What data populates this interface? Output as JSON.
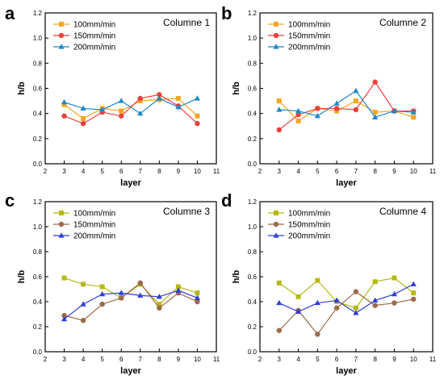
{
  "chart_data": [
    {
      "type": "line",
      "panel_letter": "a",
      "title": "Columne 1",
      "xlabel": "layer",
      "ylabel": "h/b",
      "xlim": [
        2,
        11
      ],
      "ylim": [
        0.0,
        1.2
      ],
      "xticks": [
        2,
        3,
        4,
        5,
        6,
        7,
        8,
        9,
        10,
        11
      ],
      "yticks": [
        0.0,
        0.2,
        0.4,
        0.6,
        0.8,
        1.0,
        1.2
      ],
      "grid": false,
      "legend": "top-left",
      "x": [
        3,
        4,
        5,
        6,
        7,
        8,
        9,
        10
      ],
      "series": [
        {
          "name": "100mm/min",
          "marker": "square",
          "color": "#F5A623",
          "values": [
            0.47,
            0.36,
            0.44,
            0.42,
            0.5,
            0.51,
            0.52,
            0.38
          ]
        },
        {
          "name": "150mm/min",
          "marker": "circle",
          "color": "#E8413C",
          "values": [
            0.38,
            0.32,
            0.41,
            0.38,
            0.52,
            0.55,
            0.46,
            0.32
          ]
        },
        {
          "name": "200mm/min",
          "marker": "triangle",
          "color": "#1E88C8",
          "values": [
            0.49,
            0.44,
            0.43,
            0.5,
            0.4,
            0.52,
            0.45,
            0.52
          ]
        }
      ]
    },
    {
      "type": "line",
      "panel_letter": "b",
      "title": "Columne 2",
      "xlabel": "layer",
      "ylabel": "h/b",
      "xlim": [
        2,
        11
      ],
      "ylim": [
        0.0,
        1.2
      ],
      "xticks": [
        2,
        3,
        4,
        5,
        6,
        7,
        8,
        9,
        10,
        11
      ],
      "yticks": [
        0.0,
        0.2,
        0.4,
        0.6,
        0.8,
        1.0,
        1.2
      ],
      "grid": false,
      "legend": "top-left",
      "x": [
        3,
        4,
        5,
        6,
        7,
        8,
        9,
        10
      ],
      "series": [
        {
          "name": "100mm/min",
          "marker": "square",
          "color": "#F5A623",
          "values": [
            0.5,
            0.34,
            0.44,
            0.42,
            0.5,
            0.41,
            0.42,
            0.37
          ]
        },
        {
          "name": "150mm/min",
          "marker": "circle",
          "color": "#E8413C",
          "values": [
            0.27,
            0.39,
            0.44,
            0.44,
            0.43,
            0.65,
            0.42,
            0.42
          ]
        },
        {
          "name": "200mm/min",
          "marker": "triangle",
          "color": "#1E88C8",
          "values": [
            0.43,
            0.42,
            0.38,
            0.48,
            0.58,
            0.37,
            0.42,
            0.41
          ]
        }
      ]
    },
    {
      "type": "line",
      "panel_letter": "c",
      "title": "Columne 3",
      "xlabel": "layer",
      "ylabel": "h/b",
      "xlim": [
        2,
        11
      ],
      "ylim": [
        0.0,
        1.2
      ],
      "xticks": [
        2,
        3,
        4,
        5,
        6,
        7,
        8,
        9,
        10,
        11
      ],
      "yticks": [
        0.0,
        0.2,
        0.4,
        0.6,
        0.8,
        1.0,
        1.2
      ],
      "grid": false,
      "legend": "top-left",
      "x": [
        3,
        4,
        5,
        6,
        7,
        8,
        9,
        10
      ],
      "series": [
        {
          "name": "100mm/min",
          "marker": "square",
          "color": "#B5B812",
          "values": [
            0.59,
            0.54,
            0.52,
            0.43,
            0.54,
            0.38,
            0.52,
            0.47
          ]
        },
        {
          "name": "150mm/min",
          "marker": "circle",
          "color": "#9C6A4A",
          "values": [
            0.29,
            0.25,
            0.38,
            0.43,
            0.55,
            0.35,
            0.47,
            0.4
          ]
        },
        {
          "name": "200mm/min",
          "marker": "triangle",
          "color": "#2F3FD6",
          "values": [
            0.26,
            0.38,
            0.46,
            0.47,
            0.45,
            0.44,
            0.49,
            0.43
          ]
        }
      ]
    },
    {
      "type": "line",
      "panel_letter": "d",
      "title": "Columne 4",
      "xlabel": "layer",
      "ylabel": "h/b",
      "xlim": [
        2,
        11
      ],
      "ylim": [
        0.0,
        1.2
      ],
      "xticks": [
        2,
        3,
        4,
        5,
        6,
        7,
        8,
        9,
        10,
        11
      ],
      "yticks": [
        0.0,
        0.2,
        0.4,
        0.6,
        0.8,
        1.0,
        1.2
      ],
      "grid": false,
      "legend": "top-left",
      "x": [
        3,
        4,
        5,
        6,
        7,
        8,
        9,
        10
      ],
      "series": [
        {
          "name": "100mm/min",
          "marker": "square",
          "color": "#B5B812",
          "values": [
            0.55,
            0.44,
            0.57,
            0.4,
            0.35,
            0.56,
            0.59,
            0.47
          ]
        },
        {
          "name": "150mm/min",
          "marker": "circle",
          "color": "#9C6A4A",
          "values": [
            0.17,
            0.33,
            0.14,
            0.35,
            0.48,
            0.37,
            0.39,
            0.42
          ]
        },
        {
          "name": "200mm/min",
          "marker": "triangle",
          "color": "#2F3FD6",
          "values": [
            0.39,
            0.32,
            0.39,
            0.41,
            0.31,
            0.41,
            0.46,
            0.54
          ]
        }
      ]
    }
  ]
}
